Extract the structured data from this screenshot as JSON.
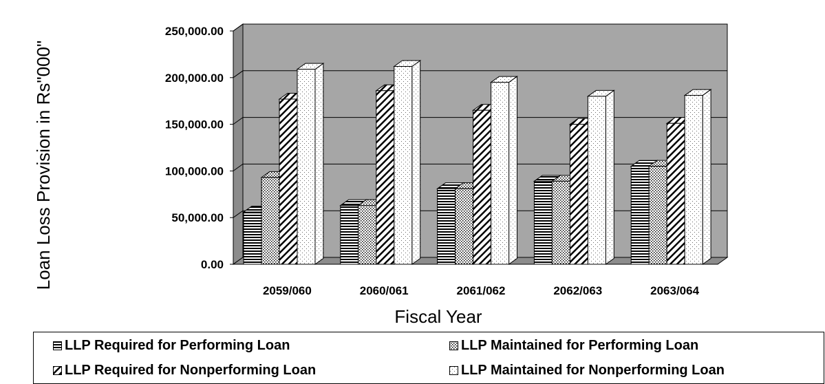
{
  "chart_data": {
    "type": "bar",
    "xlabel": "Fiscal Year",
    "ylabel": "Loan Loss Provision in Rs\"000\"",
    "ylim": [
      0,
      250000
    ],
    "yticks": [
      "0.00",
      "50,000.00",
      "100,000.00",
      "150,000.00",
      "200,000.00",
      "250,000.00"
    ],
    "yticks_values": [
      0,
      50000,
      100000,
      150000,
      200000,
      250000
    ],
    "categories": [
      "2059/060",
      "2060/061",
      "2061/062",
      "2062/063",
      "2063/064"
    ],
    "grid": true,
    "legend_position": "bottom",
    "plot_background": "#a6a6a6",
    "series": [
      {
        "name": "LLP Required for Performing Loan",
        "pattern": "horizontal-lines",
        "values": [
          56000,
          63000,
          81000,
          89000,
          105000
        ]
      },
      {
        "name": "LLP Maintained for Performing Loan",
        "pattern": "dots",
        "values": [
          93000,
          63000,
          81000,
          89000,
          105000
        ]
      },
      {
        "name": "LLP Required for Nonperforming Loan",
        "pattern": "diagonal-lines",
        "values": [
          177000,
          186000,
          165000,
          150000,
          151000
        ]
      },
      {
        "name": "LLP Maintained for Nonperforming Loan",
        "pattern": "sparse-dots",
        "values": [
          209000,
          212000,
          195000,
          180000,
          181000
        ]
      }
    ]
  }
}
